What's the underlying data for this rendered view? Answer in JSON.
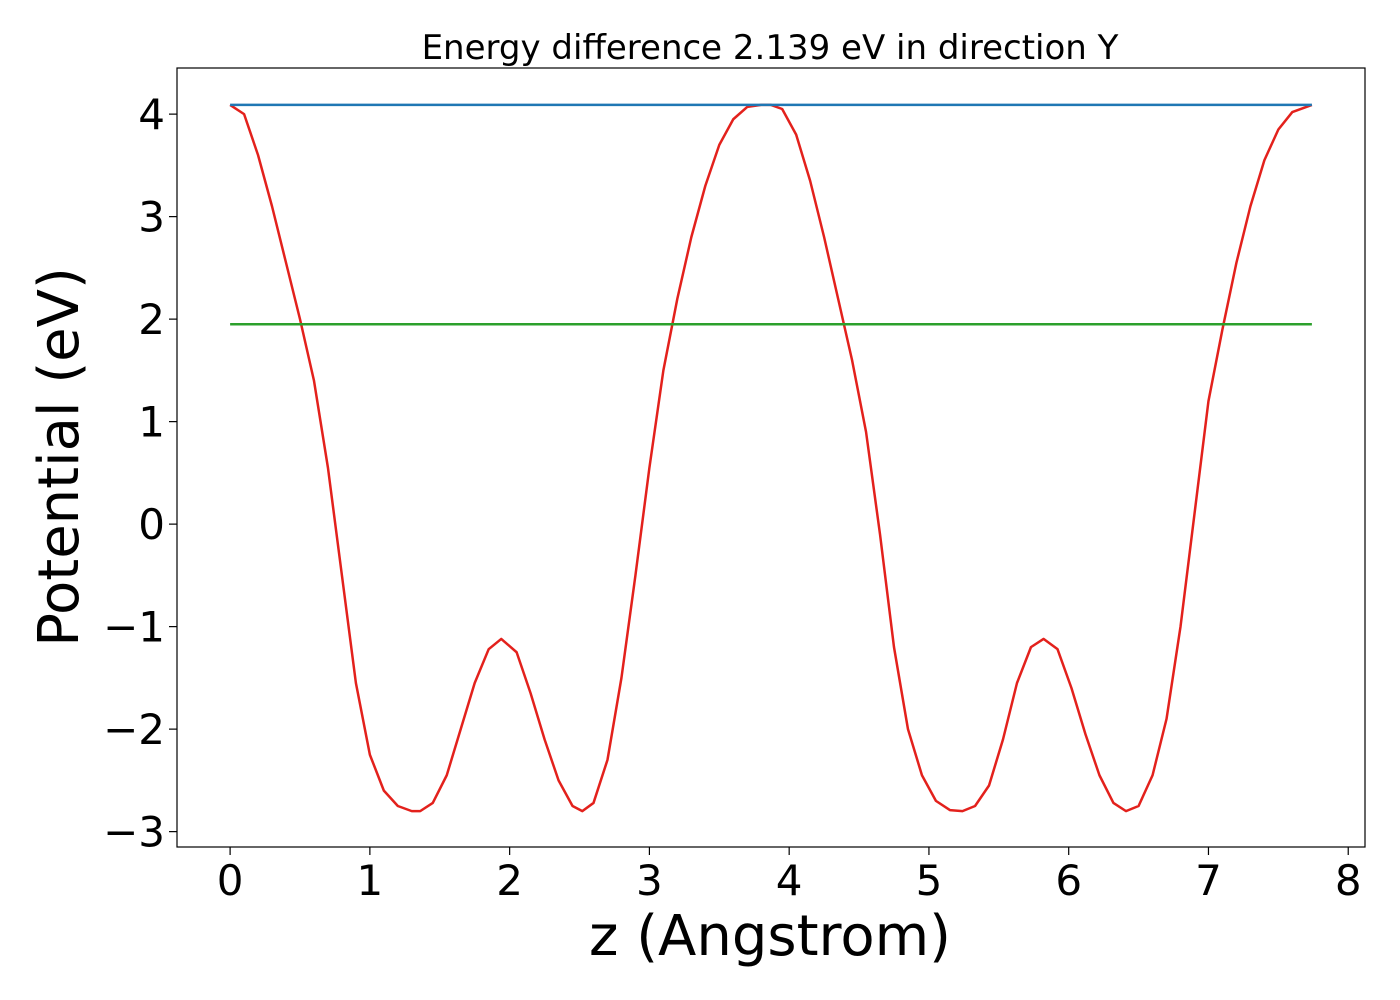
{
  "chart_data": {
    "type": "line",
    "title": "Energy difference 2.139 eV in direction Y",
    "xlabel": "z (Angstrom)",
    "ylabel": "Potential (eV)",
    "xlim": [
      -0.38,
      8.12
    ],
    "ylim": [
      -3.15,
      4.45
    ],
    "xticks": [
      0,
      1,
      2,
      3,
      4,
      5,
      6,
      7,
      8
    ],
    "yticks": [
      -3,
      -2,
      -1,
      0,
      1,
      2,
      3,
      4
    ],
    "grid": false,
    "legend": "none",
    "series": [
      {
        "role": "potential",
        "color": "#e3211c",
        "x": [
          0.0,
          0.1,
          0.2,
          0.3,
          0.4,
          0.5,
          0.6,
          0.7,
          0.8,
          0.9,
          1.0,
          1.1,
          1.2,
          1.3,
          1.36,
          1.45,
          1.55,
          1.65,
          1.75,
          1.85,
          1.94,
          2.05,
          2.15,
          2.25,
          2.35,
          2.45,
          2.52,
          2.6,
          2.7,
          2.8,
          2.9,
          3.0,
          3.1,
          3.2,
          3.3,
          3.4,
          3.5,
          3.6,
          3.7,
          3.8,
          3.87,
          3.95,
          4.05,
          4.15,
          4.25,
          4.35,
          4.45,
          4.55,
          4.65,
          4.75,
          4.85,
          4.95,
          5.05,
          5.15,
          5.24,
          5.33,
          5.43,
          5.53,
          5.63,
          5.73,
          5.82,
          5.92,
          6.02,
          6.12,
          6.22,
          6.32,
          6.41,
          6.5,
          6.6,
          6.7,
          6.8,
          6.9,
          7.0,
          7.1,
          7.2,
          7.3,
          7.4,
          7.5,
          7.6,
          7.74
        ],
        "values": [
          4.09,
          4.0,
          3.6,
          3.1,
          2.55,
          2.0,
          1.4,
          0.55,
          -0.5,
          -1.55,
          -2.25,
          -2.6,
          -2.75,
          -2.8,
          -2.8,
          -2.72,
          -2.45,
          -2.0,
          -1.55,
          -1.22,
          -1.12,
          -1.25,
          -1.65,
          -2.1,
          -2.5,
          -2.75,
          -2.8,
          -2.72,
          -2.3,
          -1.5,
          -0.5,
          0.55,
          1.5,
          2.2,
          2.8,
          3.3,
          3.7,
          3.95,
          4.07,
          4.09,
          4.09,
          4.05,
          3.8,
          3.35,
          2.8,
          2.2,
          1.6,
          0.9,
          -0.1,
          -1.2,
          -2.0,
          -2.45,
          -2.7,
          -2.79,
          -2.8,
          -2.75,
          -2.55,
          -2.1,
          -1.55,
          -1.2,
          -1.12,
          -1.22,
          -1.6,
          -2.05,
          -2.45,
          -2.72,
          -2.8,
          -2.75,
          -2.45,
          -1.9,
          -1.0,
          0.1,
          1.2,
          1.9,
          2.55,
          3.1,
          3.55,
          3.85,
          4.02,
          4.09
        ]
      },
      {
        "role": "maximum",
        "color": "#1f77b4",
        "x": [
          0.0,
          7.74
        ],
        "values": [
          4.09,
          4.09
        ]
      },
      {
        "role": "mean",
        "color": "#2ca02c",
        "x": [
          0.0,
          7.74
        ],
        "values": [
          1.95,
          1.95
        ]
      }
    ]
  }
}
